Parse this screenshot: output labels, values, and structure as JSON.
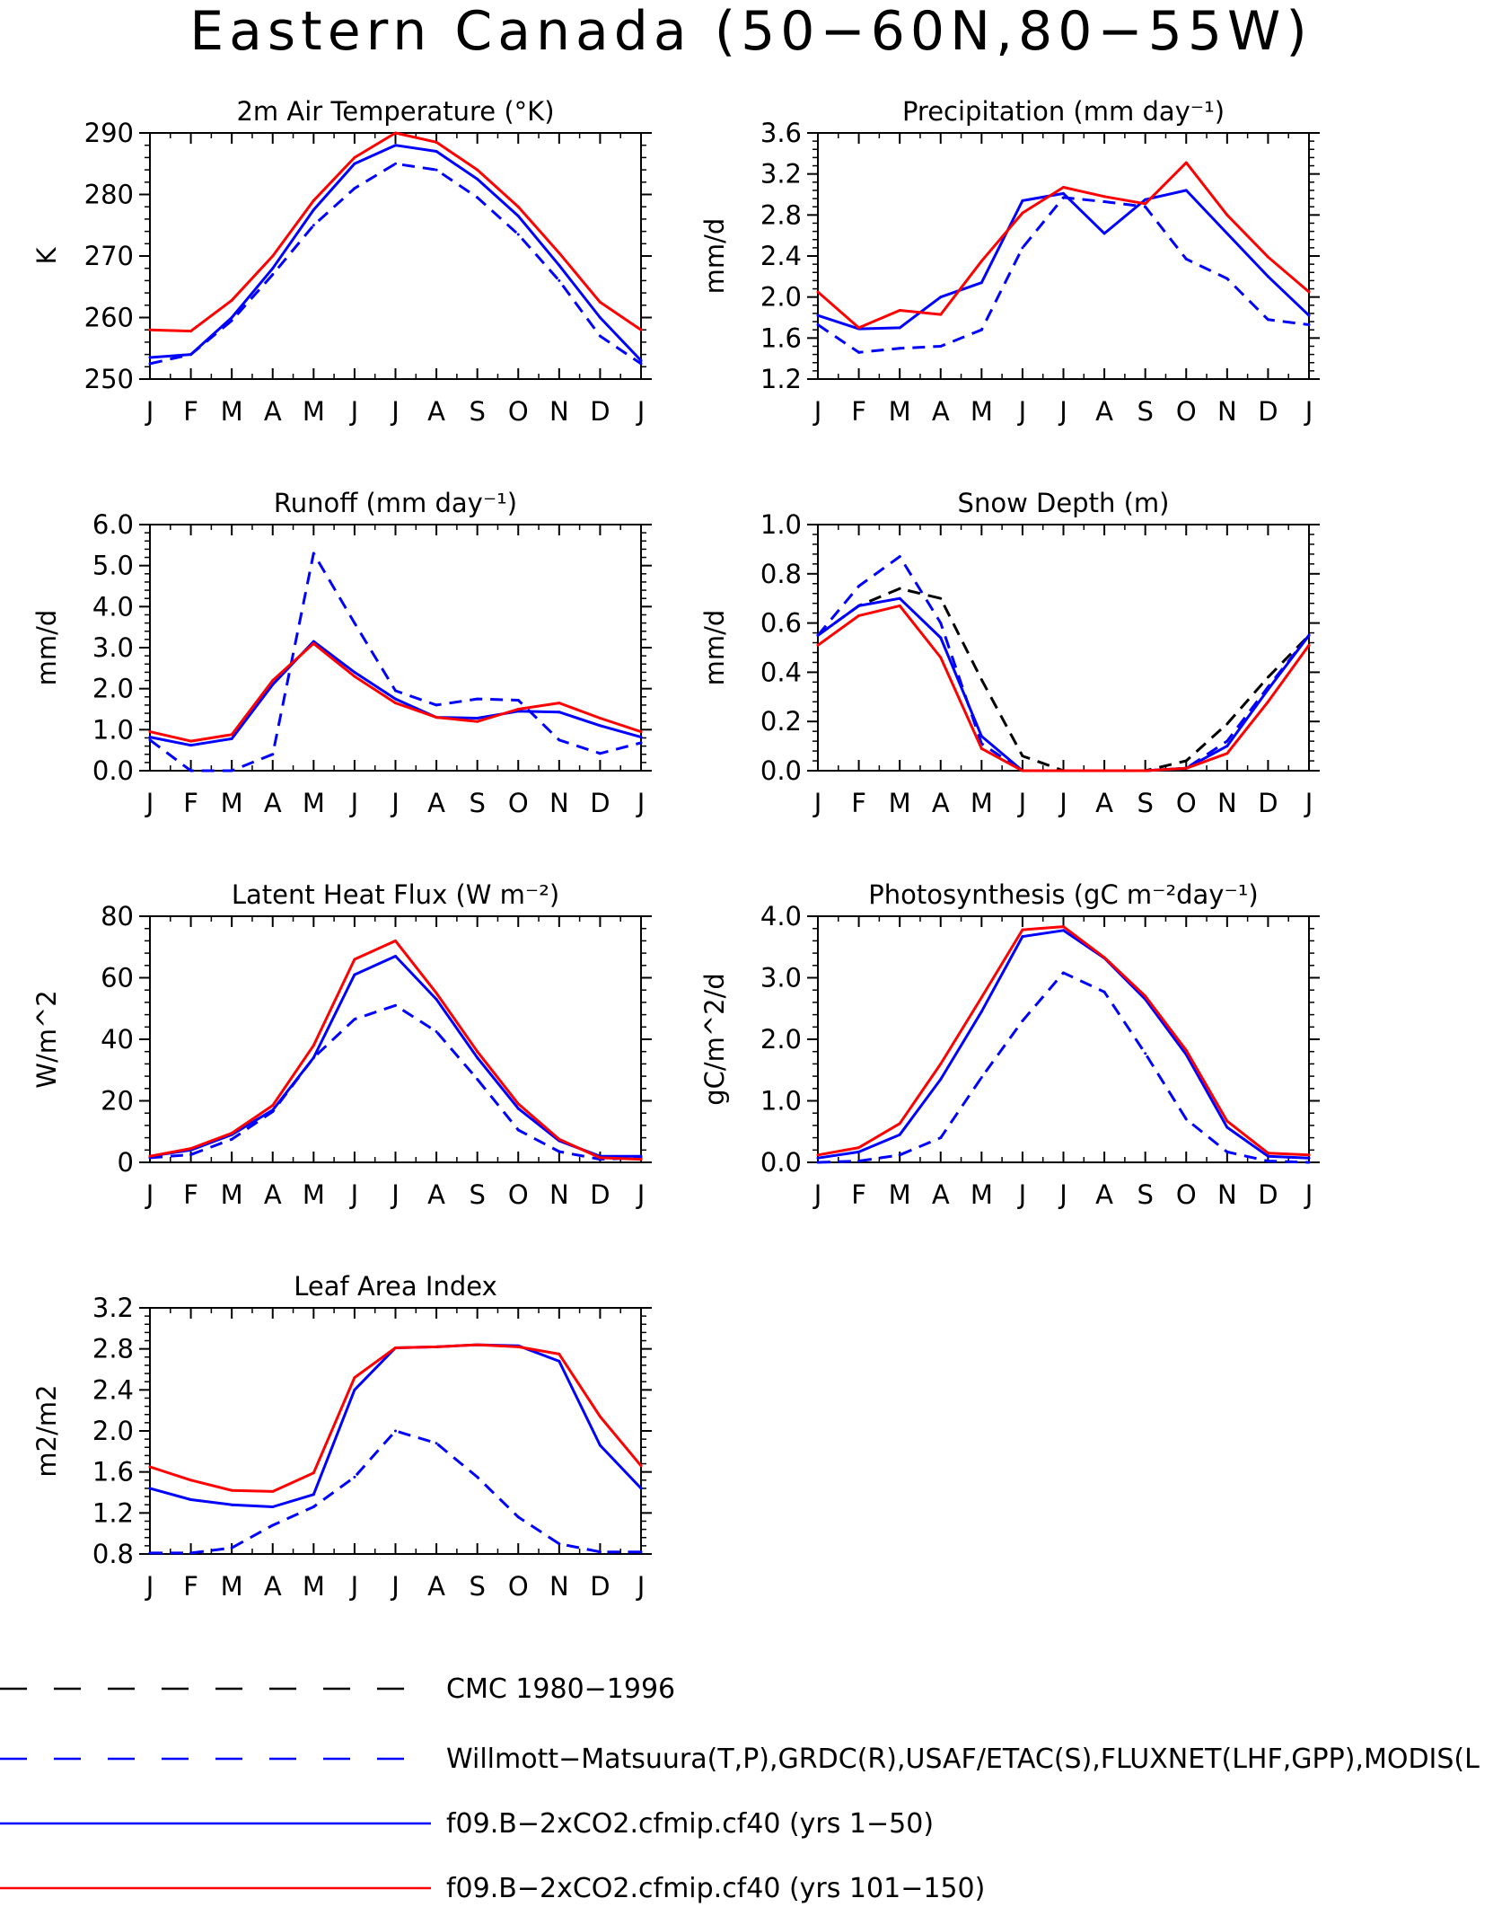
{
  "page_title": "Eastern Canada (50−60N,80−55W)",
  "colors": {
    "obs": "#0000ff",
    "cmc": "#000000",
    "run1": "#0000ff",
    "run2": "#ff0000"
  },
  "legend": [
    {
      "label": "CMC 1980−1996",
      "color": "#000000",
      "dash": true
    },
    {
      "label": "Willmott−Matsuura(T,P),GRDC(R),USAF/ETAC(S),FLUXNET(LHF,GPP),MODIS(L",
      "color": "#0000ff",
      "dash": true
    },
    {
      "label": "f09.B−2xCO2.cfmip.cf40 (yrs 1−50)",
      "color": "#0000ff",
      "dash": false
    },
    {
      "label": "f09.B−2xCO2.cfmip.cf40 (yrs 101−150)",
      "color": "#ff0000",
      "dash": false
    }
  ],
  "chart_data": [
    {
      "type": "line",
      "title": "2m Air Temperature (°K)",
      "ylabel": "K",
      "x": [
        "J",
        "F",
        "M",
        "A",
        "M",
        "J",
        "J",
        "A",
        "S",
        "O",
        "N",
        "D",
        "J"
      ],
      "ylim": [
        250,
        290
      ],
      "yticks": [
        "250",
        "260",
        "270",
        "280",
        "290"
      ],
      "series": [
        {
          "values": [
            252.5,
            254,
            259.5,
            267,
            275,
            281,
            285,
            284,
            279.5,
            273.5,
            266,
            257,
            252.5
          ],
          "color": "#0000ff",
          "dash": true
        },
        {
          "values": [
            253.5,
            254,
            260,
            268,
            277.5,
            285,
            288,
            287,
            282.5,
            276.5,
            268.5,
            260,
            253
          ],
          "color": "#0000ff",
          "dash": false
        },
        {
          "values": [
            258,
            257.8,
            262.8,
            270,
            279,
            286,
            290,
            288.5,
            284,
            278,
            270.5,
            262.5,
            258
          ],
          "color": "#ff0000",
          "dash": false
        }
      ]
    },
    {
      "type": "line",
      "title": "Precipitation (mm day⁻¹)",
      "ylabel": "mm/d",
      "x": [
        "J",
        "F",
        "M",
        "A",
        "M",
        "J",
        "J",
        "A",
        "S",
        "O",
        "N",
        "D",
        "J"
      ],
      "ylim": [
        1.2,
        3.6
      ],
      "yticks": [
        "1.2",
        "1.6",
        "2.0",
        "2.4",
        "2.8",
        "3.2",
        "3.6"
      ],
      "series": [
        {
          "values": [
            1.73,
            1.46,
            1.5,
            1.52,
            1.68,
            2.48,
            2.97,
            2.93,
            2.88,
            2.37,
            2.18,
            1.78,
            1.73
          ],
          "color": "#0000ff",
          "dash": true
        },
        {
          "values": [
            1.82,
            1.69,
            1.7,
            2.0,
            2.14,
            2.94,
            3.01,
            2.62,
            2.95,
            3.04,
            2.62,
            2.2,
            1.82
          ],
          "color": "#0000ff",
          "dash": false
        },
        {
          "values": [
            2.05,
            1.7,
            1.87,
            1.83,
            2.35,
            2.82,
            3.07,
            2.98,
            2.91,
            3.31,
            2.8,
            2.39,
            2.05
          ],
          "color": "#ff0000",
          "dash": false
        }
      ]
    },
    {
      "type": "line",
      "title": "Runoff (mm day⁻¹)",
      "ylabel": "mm/d",
      "x": [
        "J",
        "F",
        "M",
        "A",
        "M",
        "J",
        "J",
        "A",
        "S",
        "O",
        "N",
        "D",
        "J"
      ],
      "ylim": [
        0,
        6
      ],
      "yticks": [
        "0.0",
        "1.0",
        "2.0",
        "3.0",
        "4.0",
        "5.0",
        "6.0"
      ],
      "series": [
        {
          "values": [
            0.75,
            0.0,
            0.0,
            0.4,
            5.3,
            3.6,
            1.95,
            1.6,
            1.75,
            1.72,
            0.75,
            0.42,
            0.68
          ],
          "color": "#0000ff",
          "dash": true
        },
        {
          "values": [
            0.82,
            0.62,
            0.78,
            2.1,
            3.15,
            2.4,
            1.75,
            1.3,
            1.28,
            1.45,
            1.43,
            1.1,
            0.82
          ],
          "color": "#0000ff",
          "dash": false
        },
        {
          "values": [
            0.95,
            0.72,
            0.88,
            2.2,
            3.1,
            2.3,
            1.65,
            1.3,
            1.2,
            1.5,
            1.65,
            1.28,
            0.95
          ],
          "color": "#ff0000",
          "dash": false
        }
      ]
    },
    {
      "type": "line",
      "title": "Snow Depth (m)",
      "ylabel": "mm/d",
      "x": [
        "J",
        "F",
        "M",
        "A",
        "M",
        "J",
        "J",
        "A",
        "S",
        "O",
        "N",
        "D",
        "J"
      ],
      "ylim": [
        0,
        1.0
      ],
      "yticks": [
        "0.0",
        "0.2",
        "0.4",
        "0.6",
        "0.8",
        "1.0"
      ],
      "series": [
        {
          "values": [
            0.55,
            0.67,
            0.74,
            0.7,
            0.37,
            0.06,
            0.0,
            0.0,
            0.0,
            0.04,
            0.19,
            0.38,
            0.55
          ],
          "color": "#000000",
          "dash": true
        },
        {
          "values": [
            0.55,
            0.75,
            0.87,
            0.6,
            0.11,
            0.0,
            0.0,
            0.0,
            0.0,
            0.01,
            0.12,
            0.34,
            0.55
          ],
          "color": "#0000ff",
          "dash": true
        },
        {
          "values": [
            0.55,
            0.67,
            0.7,
            0.54,
            0.14,
            0.0,
            0.0,
            0.0,
            0.0,
            0.01,
            0.1,
            0.33,
            0.55
          ],
          "color": "#0000ff",
          "dash": false
        },
        {
          "values": [
            0.51,
            0.63,
            0.67,
            0.46,
            0.09,
            0.0,
            0.0,
            0.0,
            0.0,
            0.01,
            0.07,
            0.28,
            0.51
          ],
          "color": "#ff0000",
          "dash": false
        }
      ]
    },
    {
      "type": "line",
      "title": "Latent Heat Flux (W m⁻²)",
      "ylabel": "W/m^2",
      "x": [
        "J",
        "F",
        "M",
        "A",
        "M",
        "J",
        "J",
        "A",
        "S",
        "O",
        "N",
        "D",
        "J"
      ],
      "ylim": [
        0,
        80
      ],
      "yticks": [
        "0",
        "20",
        "40",
        "60",
        "80"
      ],
      "series": [
        {
          "values": [
            1.5,
            2.5,
            7.5,
            16.5,
            34,
            46.5,
            51,
            42.5,
            27,
            10.5,
            3.5,
            1,
            1.5
          ],
          "color": "#0000ff",
          "dash": true
        },
        {
          "values": [
            2,
            4,
            9,
            17,
            34,
            61,
            67,
            53,
            34,
            17.5,
            7,
            2,
            2
          ],
          "color": "#0000ff",
          "dash": false
        },
        {
          "values": [
            2,
            4.5,
            9.5,
            18.5,
            38,
            66,
            72,
            55,
            36,
            19,
            7.5,
            1.5,
            1
          ],
          "color": "#ff0000",
          "dash": false
        }
      ]
    },
    {
      "type": "line",
      "title": "Photosynthesis (gC m⁻²day⁻¹)",
      "ylabel": "gC/m^2/d",
      "x": [
        "J",
        "F",
        "M",
        "A",
        "M",
        "J",
        "J",
        "A",
        "S",
        "O",
        "N",
        "D",
        "J"
      ],
      "ylim": [
        0,
        4.0
      ],
      "yticks": [
        "0.0",
        "1.0",
        "2.0",
        "3.0",
        "4.0"
      ],
      "series": [
        {
          "values": [
            0.0,
            0.02,
            0.12,
            0.4,
            1.38,
            2.3,
            3.08,
            2.77,
            1.77,
            0.7,
            0.17,
            0.02,
            0.0
          ],
          "color": "#0000ff",
          "dash": true
        },
        {
          "values": [
            0.07,
            0.17,
            0.45,
            1.35,
            2.45,
            3.67,
            3.77,
            3.32,
            2.65,
            1.75,
            0.57,
            0.1,
            0.07
          ],
          "color": "#0000ff",
          "dash": false
        },
        {
          "values": [
            0.12,
            0.24,
            0.63,
            1.6,
            2.68,
            3.78,
            3.83,
            3.33,
            2.7,
            1.82,
            0.67,
            0.15,
            0.12
          ],
          "color": "#ff0000",
          "dash": false
        }
      ]
    },
    {
      "type": "line",
      "title": "Leaf Area Index",
      "ylabel": "m2/m2",
      "x": [
        "J",
        "F",
        "M",
        "A",
        "M",
        "J",
        "J",
        "A",
        "S",
        "O",
        "N",
        "D",
        "J"
      ],
      "ylim": [
        0.8,
        3.2
      ],
      "yticks": [
        "0.8",
        "1.2",
        "1.6",
        "2.0",
        "2.4",
        "2.8",
        "3.2"
      ],
      "series": [
        {
          "values": [
            0.81,
            0.81,
            0.86,
            1.08,
            1.26,
            1.55,
            2.0,
            1.88,
            1.55,
            1.16,
            0.9,
            0.82,
            0.82
          ],
          "color": "#0000ff",
          "dash": true
        },
        {
          "values": [
            1.44,
            1.33,
            1.28,
            1.26,
            1.38,
            2.4,
            2.81,
            2.82,
            2.84,
            2.83,
            2.68,
            1.86,
            1.44
          ],
          "color": "#0000ff",
          "dash": false
        },
        {
          "values": [
            1.65,
            1.52,
            1.42,
            1.41,
            1.59,
            2.52,
            2.81,
            2.82,
            2.84,
            2.82,
            2.75,
            2.14,
            1.66
          ],
          "color": "#ff0000",
          "dash": false
        }
      ]
    }
  ]
}
